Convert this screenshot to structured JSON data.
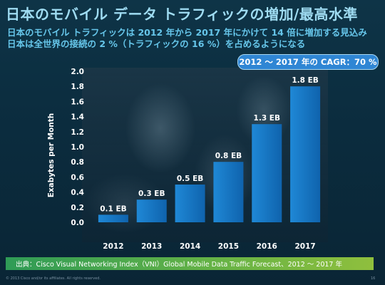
{
  "slide": {
    "title": "日本のモバイル データ トラフィックの増加/最高水準",
    "subtitle_line1": "日本のモバイル トラフィックは 2012 年から 2017 年にかけて 14 倍に増加する見込み",
    "subtitle_line2": "日本は全世界の接続の 2 %（トラフィックの 16 %）を占めるようになる",
    "cagr_badge": "2012 〜 2017 年の CAGR：70 %",
    "source": "出典：Cisco Visual Networking Index（VNI）Global Mobile Data Traffic Forecast、2012 〜 2017 年",
    "copyright": "© 2013 Cisco and/or its affiliates. All rights reserved.",
    "page_number": "16"
  },
  "colors": {
    "bar": "#1f88d6",
    "bar_dark": "#0f63ad",
    "badge": "#2f86d4",
    "title": "#9fdcf2",
    "subtitle": "#66c6ea",
    "source_bar": "#5aae4a"
  },
  "chart_data": {
    "type": "bar",
    "title": "",
    "xlabel": "",
    "ylabel": "Exabytes per Month",
    "categories": [
      "2012",
      "2013",
      "2014",
      "2015",
      "2016",
      "2017"
    ],
    "values": [
      0.1,
      0.3,
      0.5,
      0.8,
      1.3,
      1.8
    ],
    "data_labels": [
      "0.1 EB",
      "0.3 EB",
      "0.5 EB",
      "0.8 EB",
      "1.3 EB",
      "1.8 EB"
    ],
    "ylim": [
      0,
      2.0
    ],
    "yticks": [
      "0.0",
      "0.2",
      "0.4",
      "0.6",
      "0.8",
      "1.0",
      "1.2",
      "1.4",
      "1.6",
      "1.8",
      "2.0"
    ],
    "grid": false,
    "legend": "none"
  }
}
